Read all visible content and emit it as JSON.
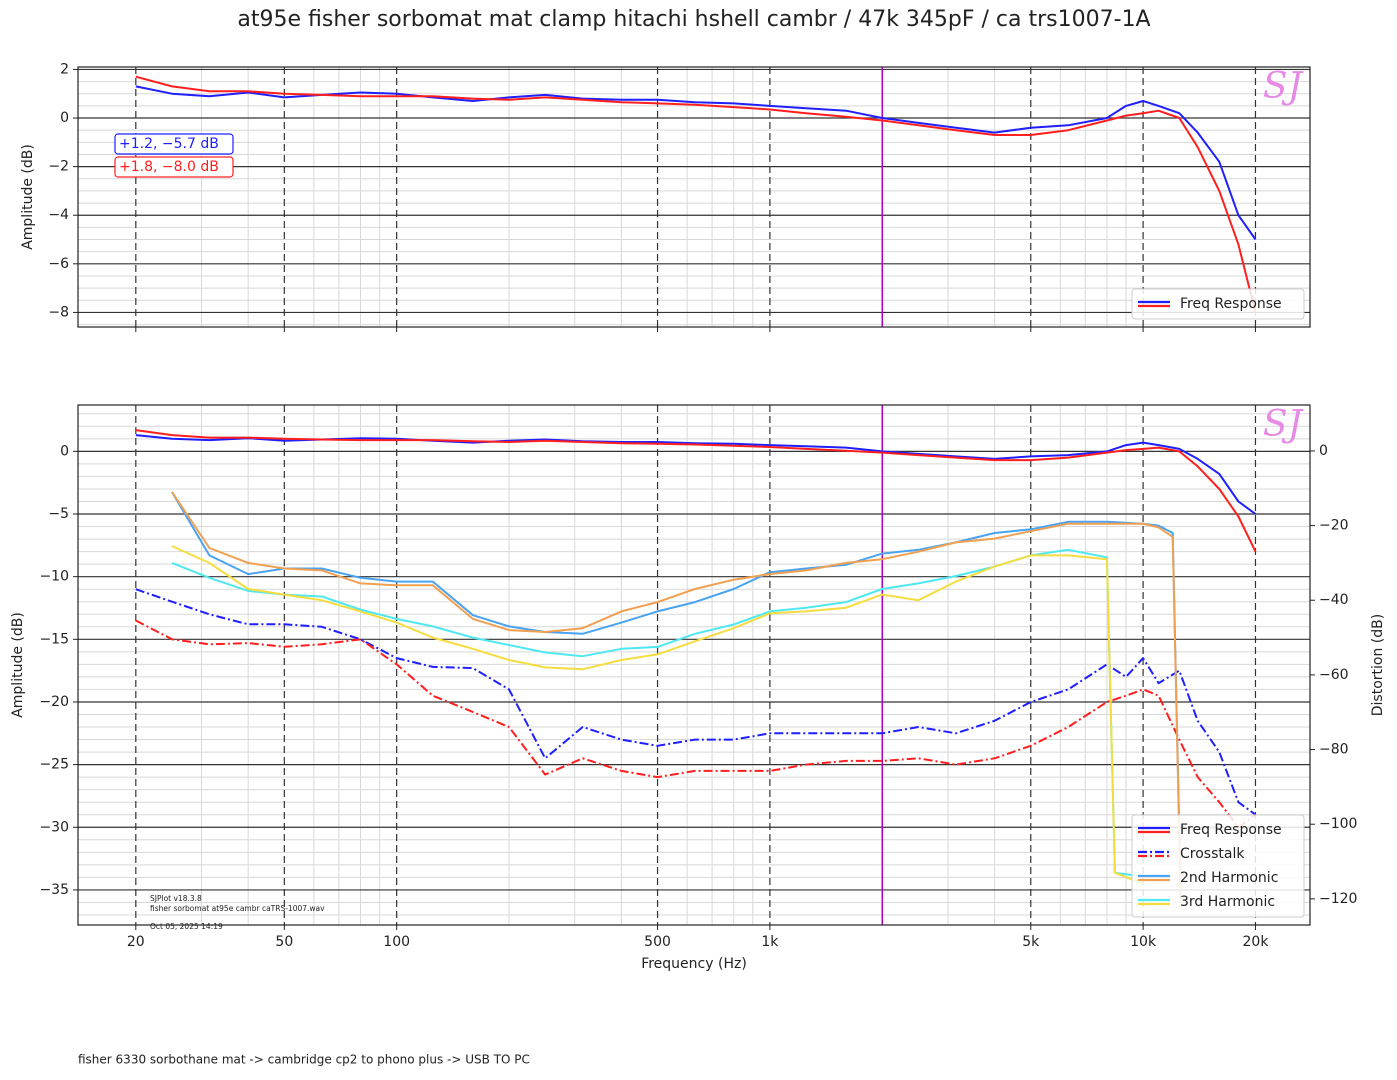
{
  "footer": "fisher 6330 sorbothane mat  -> cambridge cp2 to phono plus -> USB TO PC",
  "chart_data": [
    {
      "type": "line",
      "title": "at95e fisher sorbomat mat clamp hitachi hshell cambr /  47k 345pF  / ca trs1007-1A",
      "ylabel": "Amplitude (dB)",
      "xscale": "log",
      "grid": true,
      "logo": "SJ",
      "legend_loc": "lower right",
      "xlim": [
        14,
        28000
      ],
      "ylim": [
        -8.6,
        2.1
      ],
      "xticks": [
        20,
        50,
        100,
        500,
        1000,
        5000,
        10000,
        20000
      ],
      "show_xtick_labels": false,
      "xminorticks": [
        30,
        40,
        60,
        70,
        80,
        90,
        200,
        300,
        400,
        600,
        700,
        800,
        900,
        2000,
        3000,
        4000,
        6000,
        7000,
        8000,
        9000
      ],
      "yticks": [
        {
          "value": -8,
          "label": "−8"
        },
        {
          "value": -6,
          "label": "−6"
        },
        {
          "value": -4,
          "label": "−4"
        },
        {
          "value": -2,
          "label": "−2"
        },
        0,
        2
      ],
      "yminorticks": [
        -8.5,
        -7.5,
        -7,
        -6.5,
        -5.5,
        -5,
        -4.5,
        -3.5,
        -3,
        -2.5,
        -1.5,
        -1,
        -0.5,
        0.5,
        1,
        1.5
      ],
      "vline": {
        "x": 2000,
        "color": "#b000c0"
      },
      "annotations": [
        {
          "text": "+1.2, −5.7 dB",
          "color": "#2020ff"
        },
        {
          "text": "+1.8, −8.0 dB",
          "color": "#ff2020"
        }
      ],
      "series": [
        {
          "name": "Freq Response",
          "color": "#1f1fff",
          "style": "solid",
          "x": [
            20,
            25,
            31.5,
            40,
            50,
            63,
            80,
            100,
            125,
            160,
            200,
            250,
            315,
            400,
            500,
            630,
            800,
            1000,
            1250,
            1600,
            2000,
            2500,
            3150,
            4000,
            5000,
            6300,
            8000,
            9000,
            10000,
            11000,
            12500,
            14000,
            16000,
            18000,
            20000
          ],
          "values": [
            1.3,
            1.0,
            0.9,
            1.05,
            0.85,
            0.95,
            1.05,
            1.0,
            0.85,
            0.7,
            0.85,
            0.95,
            0.8,
            0.75,
            0.75,
            0.65,
            0.6,
            0.5,
            0.4,
            0.3,
            0.0,
            -0.2,
            -0.4,
            -0.6,
            -0.4,
            -0.3,
            0.0,
            0.5,
            0.7,
            0.5,
            0.2,
            -0.6,
            -1.8,
            -4.0,
            -5.0
          ]
        },
        {
          "name": "Freq Response",
          "color": "#ff1f1f",
          "style": "solid",
          "x": [
            20,
            25,
            31.5,
            40,
            50,
            63,
            80,
            100,
            125,
            160,
            200,
            250,
            315,
            400,
            500,
            630,
            800,
            1000,
            1250,
            1600,
            2000,
            2500,
            3150,
            4000,
            5000,
            6300,
            8000,
            9000,
            10000,
            11000,
            12500,
            14000,
            16000,
            18000,
            20000
          ],
          "values": [
            1.7,
            1.3,
            1.1,
            1.1,
            1.0,
            0.95,
            0.9,
            0.9,
            0.9,
            0.8,
            0.75,
            0.85,
            0.75,
            0.65,
            0.6,
            0.55,
            0.45,
            0.35,
            0.2,
            0.05,
            -0.1,
            -0.3,
            -0.5,
            -0.7,
            -0.7,
            -0.5,
            -0.1,
            0.1,
            0.2,
            0.3,
            0.0,
            -1.2,
            -3.0,
            -5.2,
            -8.0
          ]
        }
      ]
    },
    {
      "type": "line",
      "ylabel": "Amplitude (dB)",
      "xlabel": "Frequency (Hz)",
      "y2label": "Distortion (dB)",
      "xscale": "log",
      "grid": true,
      "logo": "SJ",
      "legend_loc": "lower right",
      "xlim": [
        14,
        28000
      ],
      "ylim": [
        -37.8,
        3.7
      ],
      "y2lim": [
        -127,
        12.3
      ],
      "xticks": [
        20,
        50,
        100,
        500,
        {
          "value": 1000,
          "label": "1k"
        },
        {
          "value": 5000,
          "label": "5k"
        },
        {
          "value": 10000,
          "label": "10k"
        },
        {
          "value": 20000,
          "label": "20k"
        }
      ],
      "xminorticks": [
        30,
        40,
        60,
        70,
        80,
        90,
        200,
        300,
        400,
        600,
        700,
        800,
        900,
        2000,
        3000,
        4000,
        6000,
        7000,
        8000,
        9000
      ],
      "yticks": [
        {
          "value": -35,
          "label": "−35"
        },
        {
          "value": -30,
          "label": "−30"
        },
        {
          "value": -25,
          "label": "−25"
        },
        {
          "value": -20,
          "label": "−20"
        },
        {
          "value": -15,
          "label": "−15"
        },
        {
          "value": -10,
          "label": "−10"
        },
        {
          "value": -5,
          "label": "−5"
        },
        0
      ],
      "yminorticks": [
        -37,
        -36,
        -34,
        -33,
        -32,
        -31,
        -29,
        -28,
        -27,
        -26,
        -24,
        -23,
        -22,
        -21,
        -19,
        -18,
        -17,
        -16,
        -14,
        -13,
        -12,
        -11,
        -9,
        -8,
        -7,
        -6,
        -4,
        -3,
        -2,
        -1,
        1,
        2,
        3
      ],
      "y2ticks": [
        {
          "value": -120,
          "label": "−120"
        },
        {
          "value": -100,
          "label": "−100"
        },
        {
          "value": -80,
          "label": "−80"
        },
        {
          "value": -60,
          "label": "−60"
        },
        {
          "value": -40,
          "label": "−40"
        },
        {
          "value": -20,
          "label": "−20"
        },
        0
      ],
      "vline": {
        "x": 2000,
        "color": "#b000c0"
      },
      "notes": [
        "SJPlot v18.3.8",
        "fisher sorbomat at95e cambr caTRS-1007.wav",
        "Oct 05, 2025 14:19"
      ],
      "series": [
        {
          "name": "Freq Response",
          "color": "#1f1fff",
          "style": "solid",
          "x": [
            20,
            25,
            31.5,
            40,
            50,
            63,
            80,
            100,
            125,
            160,
            200,
            250,
            315,
            400,
            500,
            630,
            800,
            1000,
            1250,
            1600,
            2000,
            2500,
            3150,
            4000,
            5000,
            6300,
            8000,
            9000,
            10000,
            11000,
            12500,
            14000,
            16000,
            18000,
            20000
          ],
          "values": [
            1.3,
            1.0,
            0.9,
            1.05,
            0.85,
            0.95,
            1.05,
            1.0,
            0.85,
            0.7,
            0.85,
            0.95,
            0.8,
            0.75,
            0.75,
            0.65,
            0.6,
            0.5,
            0.4,
            0.3,
            0.0,
            -0.2,
            -0.4,
            -0.6,
            -0.4,
            -0.3,
            0.0,
            0.5,
            0.7,
            0.5,
            0.2,
            -0.6,
            -1.8,
            -4.0,
            -5.0
          ]
        },
        {
          "name": "Freq Response",
          "color": "#ff1f1f",
          "style": "solid",
          "x": [
            20,
            25,
            31.5,
            40,
            50,
            63,
            80,
            100,
            125,
            160,
            200,
            250,
            315,
            400,
            500,
            630,
            800,
            1000,
            1250,
            1600,
            2000,
            2500,
            3150,
            4000,
            5000,
            6300,
            8000,
            9000,
            10000,
            11000,
            12500,
            14000,
            16000,
            18000,
            20000
          ],
          "values": [
            1.7,
            1.3,
            1.1,
            1.1,
            1.0,
            0.95,
            0.9,
            0.9,
            0.9,
            0.8,
            0.75,
            0.85,
            0.75,
            0.65,
            0.6,
            0.55,
            0.45,
            0.35,
            0.2,
            0.05,
            -0.1,
            -0.3,
            -0.5,
            -0.7,
            -0.7,
            -0.5,
            -0.1,
            0.1,
            0.2,
            0.3,
            0.0,
            -1.2,
            -3.0,
            -5.2,
            -8.0
          ]
        },
        {
          "name": "Crosstalk",
          "color": "#1f1fff",
          "style": "dashdot",
          "x": [
            20,
            25,
            31.5,
            40,
            50,
            63,
            80,
            100,
            125,
            160,
            200,
            250,
            315,
            400,
            500,
            630,
            800,
            1000,
            1250,
            1600,
            2000,
            2500,
            3150,
            4000,
            5000,
            6300,
            8000,
            9000,
            10000,
            11000,
            12500,
            14000,
            16000,
            18000,
            20000
          ],
          "values": [
            -11,
            -12,
            -13,
            -13.8,
            -13.8,
            -14,
            -15,
            -16.5,
            -17.2,
            -17.3,
            -19,
            -24.5,
            -22,
            -23,
            -23.5,
            -23,
            -23,
            -22.5,
            -22.5,
            -22.5,
            -22.5,
            -22,
            -22.5,
            -21.5,
            -20,
            -19,
            -17,
            -18,
            -16.5,
            -18.5,
            -17.5,
            -21.5,
            -24,
            -28,
            -29
          ]
        },
        {
          "name": "Crosstalk",
          "color": "#ff1f1f",
          "style": "dashdot",
          "x": [
            20,
            25,
            31.5,
            40,
            50,
            63,
            80,
            100,
            125,
            160,
            200,
            250,
            315,
            400,
            500,
            630,
            800,
            1000,
            1250,
            1600,
            2000,
            2500,
            3150,
            4000,
            5000,
            6300,
            8000,
            9000,
            10000,
            11000,
            12500,
            14000,
            16000,
            18000,
            20000
          ],
          "values": [
            -13.5,
            -15,
            -15.4,
            -15.3,
            -15.6,
            -15.4,
            -15,
            -17,
            -19.5,
            -20.8,
            -22,
            -25.8,
            -24.5,
            -25.5,
            -26,
            -25.5,
            -25.5,
            -25.5,
            -25,
            -24.7,
            -24.7,
            -24.5,
            -25,
            -24.5,
            -23.5,
            -22,
            -20,
            -19.5,
            -19,
            -19.5,
            -23,
            -26,
            -28,
            -30,
            -29
          ]
        },
        {
          "name": "2nd Harmonic",
          "color": "#4aa3f0",
          "style": "solid",
          "axis": "y2",
          "x": [
            25,
            31.5,
            40,
            50,
            63,
            80,
            100,
            125,
            160,
            200,
            250,
            315,
            400,
            500,
            630,
            800,
            1000,
            1250,
            1600,
            2000,
            2500,
            3150,
            4000,
            5000,
            6300,
            8000,
            10000,
            11000,
            12000,
            12600
          ],
          "values": [
            -11,
            -28,
            -33,
            -31.5,
            -31.5,
            -34,
            -35,
            -35,
            -44,
            -47,
            -48.5,
            -49,
            -46,
            -43,
            -40.5,
            -37,
            -32.5,
            -31.5,
            -30.5,
            -27.5,
            -26.5,
            -24.5,
            -22,
            -21,
            -19,
            -19,
            -19.5,
            -20,
            -22,
            -118
          ]
        },
        {
          "name": "2nd Harmonic",
          "color": "#f0a050",
          "style": "solid",
          "axis": "y2",
          "x": [
            25,
            31.5,
            40,
            50,
            63,
            80,
            100,
            125,
            160,
            200,
            250,
            315,
            400,
            500,
            630,
            800,
            1000,
            1250,
            1600,
            2000,
            2500,
            3150,
            4000,
            5000,
            6300,
            8000,
            10000,
            11000,
            12000,
            12600
          ],
          "values": [
            -11,
            -26,
            -30,
            -31.5,
            -32,
            -35.5,
            -36,
            -36,
            -45,
            -48,
            -48.5,
            -47.5,
            -43,
            -40.5,
            -37,
            -34.5,
            -33,
            -32,
            -30,
            -29,
            -27,
            -24.5,
            -23.5,
            -21.5,
            -19.5,
            -19.5,
            -19.5,
            -20.5,
            -23,
            -120
          ]
        },
        {
          "name": "3rd Harmonic",
          "color": "#50e8f0",
          "style": "solid",
          "axis": "y2",
          "x": [
            25,
            31.5,
            40,
            50,
            63,
            80,
            100,
            125,
            160,
            200,
            250,
            315,
            400,
            500,
            630,
            800,
            1000,
            1250,
            1600,
            2000,
            2500,
            3150,
            4000,
            5000,
            6300,
            8000,
            8400,
            10000
          ],
          "values": [
            -30,
            -34,
            -37.5,
            -38.5,
            -39,
            -42.5,
            -45,
            -47,
            -50,
            -52,
            -54,
            -55,
            -53,
            -52.5,
            -49,
            -46.5,
            -43,
            -42,
            -40.5,
            -37,
            -35.5,
            -33.5,
            -31,
            -28,
            -26.5,
            -28.5,
            -113,
            -114
          ]
        },
        {
          "name": "3rd Harmonic",
          "color": "#f5dc40",
          "style": "solid",
          "axis": "y2",
          "x": [
            25,
            31.5,
            40,
            50,
            63,
            80,
            100,
            125,
            160,
            200,
            250,
            315,
            400,
            500,
            630,
            800,
            1000,
            1250,
            1600,
            2000,
            2500,
            3150,
            4000,
            5000,
            6300,
            8000,
            8400,
            10000
          ],
          "values": [
            -25.5,
            -30,
            -37,
            -38.5,
            -40,
            -43,
            -46,
            -50,
            -53,
            -56,
            -58,
            -58.5,
            -56,
            -54.5,
            -51,
            -47.5,
            -43.5,
            -43,
            -42,
            -38.5,
            -40,
            -35,
            -31,
            -28,
            -28,
            -29,
            -113,
            -116
          ]
        }
      ]
    }
  ]
}
